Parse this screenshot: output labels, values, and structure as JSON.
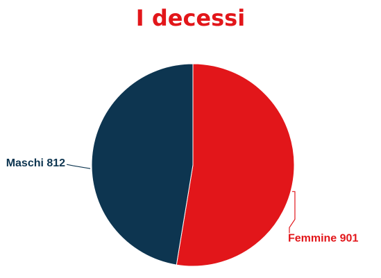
{
  "chart_data": {
    "type": "pie",
    "title": "I decessi",
    "slices": [
      {
        "label": "Femmine",
        "value": 901,
        "display": "Femmine 901",
        "color": "#e2161a"
      },
      {
        "label": "Maschi",
        "value": 812,
        "display": "Maschi 812",
        "color": "#0d3550"
      }
    ],
    "start_angle_deg": 0,
    "direction": "clockwise",
    "legend": "none",
    "labels": "outside-with-leader-lines"
  }
}
